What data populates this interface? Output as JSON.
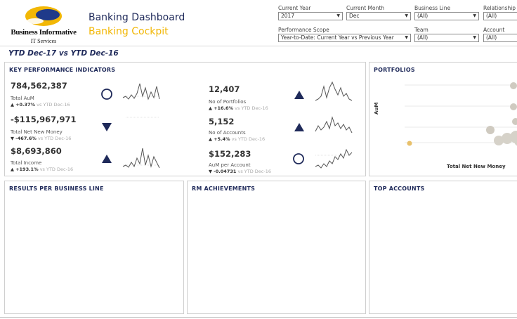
{
  "logo": {
    "name": "Business Informative",
    "sub": "IT Services"
  },
  "app": {
    "title": "Banking Dashboard",
    "subtitle": "Banking Cockpit"
  },
  "filters": {
    "current_year": {
      "label": "Current Year",
      "value": "2017"
    },
    "current_month": {
      "label": "Current Month",
      "value": "Dec"
    },
    "business_line": {
      "label": "Business Line",
      "value": "(All)"
    },
    "relationship_manager": {
      "label": "Relationship M",
      "value": "(All)"
    },
    "performance_scope": {
      "label": "Performance Scope",
      "value": "Year-to-Date: Current Year vs Previous Year"
    },
    "team": {
      "label": "Team",
      "value": "(All)"
    },
    "account": {
      "label": "Account",
      "value": "(All)"
    }
  },
  "period_title": "YTD Dec-17 vs YTD Dec-16",
  "kpi_panel": {
    "title": "KEY PERFORMANCE INDICATORS",
    "items": [
      {
        "value": "784,562,387",
        "label": "Total AuM",
        "arrow": "▲",
        "delta": "+0.37%",
        "vs": "vs YTD Dec-16",
        "indicator": "circle"
      },
      {
        "value": "-$115,967,971",
        "label": "Total Net New Money",
        "arrow": "▼",
        "delta": "-467.6%",
        "vs": "vs YTD Dec-16",
        "indicator": "down"
      },
      {
        "value": "$8,693,860",
        "label": "Total Income",
        "arrow": "▲",
        "delta": "+193.1%",
        "vs": "vs YTD Dec-16",
        "indicator": "up"
      },
      {
        "value": "12,407",
        "label": "No of Portfolios",
        "arrow": "▲",
        "delta": "+16.6%",
        "vs": "vs YTD Dec-16",
        "indicator": "up"
      },
      {
        "value": "5,152",
        "label": "No of Accounts",
        "arrow": "▲",
        "delta": "+5.4%",
        "vs": "vs YTD Dec-16",
        "indicator": "up"
      },
      {
        "value": "$152,283",
        "label": "AuM per Account",
        "arrow": "▼",
        "delta": "-0.04731",
        "vs": "vs YTD Dec-16",
        "indicator": "circle"
      }
    ]
  },
  "portfolios": {
    "title": "PORTFOLIOS",
    "ylabel": "AuM",
    "xlabel": "Total Net New Money"
  },
  "results": {
    "title": "RESULTS PER BUSINESS LINE"
  },
  "rm": {
    "title": "RM ACHIEVEMENTS"
  },
  "top_accounts": {
    "title": "TOP ACCOUNTS"
  },
  "colors": {
    "navy": "#1f2a5a",
    "gold": "#f2b705",
    "spark": "#555555",
    "border": "#cfcfcf"
  }
}
